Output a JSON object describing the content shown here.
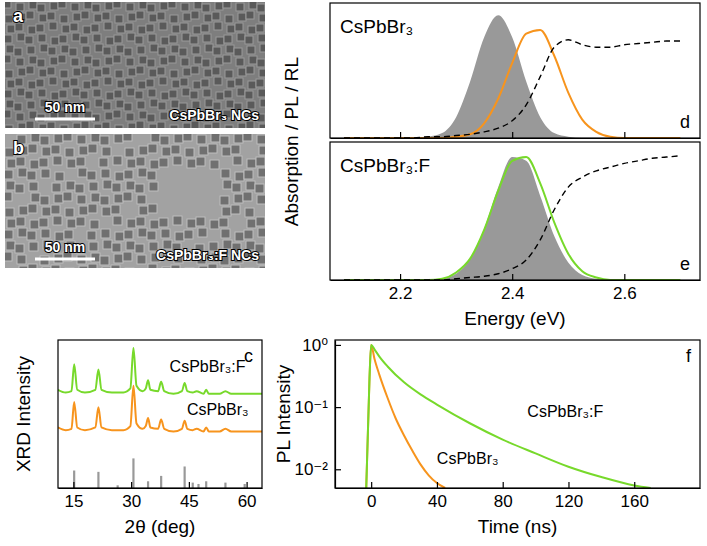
{
  "chart_data": [
    {
      "type": "image",
      "panel": "a",
      "title": "CsPbBr₃ NCs",
      "annotations": [
        "50 nm"
      ]
    },
    {
      "type": "image",
      "panel": "b",
      "title": "CsPbBr₃:F NCs",
      "annotations": [
        "50 nm"
      ]
    },
    {
      "type": "line",
      "panel": "c",
      "xlabel": "2θ (deg)",
      "ylabel": "XRD Intensity",
      "xlim": [
        11,
        64
      ],
      "ylim": [
        0,
        11
      ],
      "xticks": [
        15,
        30,
        45,
        60
      ],
      "tick_labels": "x",
      "x": [
        11,
        13,
        14.5,
        15.2,
        16,
        18,
        20.7,
        21.5,
        22.3,
        25,
        28,
        29.8,
        30.6,
        31.4,
        33,
        33.8,
        34.4,
        35,
        37,
        37.8,
        38.6,
        41,
        43.2,
        43.9,
        44.6,
        46,
        47,
        48.8,
        49.5,
        50.2,
        53,
        54.5,
        56,
        60,
        64
      ],
      "series": [
        {
          "name": "CsPbBr₃:F",
          "color": "#77d92b",
          "values": [
            7.3,
            7.1,
            7.2,
            9.2,
            7.3,
            7.1,
            7.3,
            8.8,
            7.3,
            7.1,
            7.1,
            7.4,
            10.4,
            7.6,
            7.2,
            7.4,
            8.0,
            7.3,
            7.2,
            7.9,
            7.2,
            7.0,
            7.2,
            7.8,
            7.2,
            7.1,
            7.2,
            7.0,
            7.3,
            7.0,
            7.0,
            7.2,
            7.0,
            7.0,
            7.0
          ]
        },
        {
          "name": "CsPbBr₃",
          "color": "#f7941d",
          "values": [
            4.5,
            4.3,
            4.4,
            6.4,
            4.5,
            4.3,
            4.5,
            6.0,
            4.5,
            4.3,
            4.3,
            4.6,
            7.6,
            4.8,
            4.4,
            4.6,
            5.2,
            4.5,
            4.4,
            5.1,
            4.4,
            4.2,
            4.4,
            5.0,
            4.4,
            4.3,
            4.4,
            4.2,
            4.5,
            4.2,
            4.2,
            4.4,
            4.2,
            4.2,
            4.2
          ]
        },
        {
          "type": "stem",
          "color": "#999999",
          "x": [
            15.2,
            21.5,
            26.5,
            30.6,
            34.4,
            37.8,
            43.9,
            46,
            47.5,
            49.5,
            54.5,
            59.5
          ],
          "values": [
            1.3,
            1.2,
            0.2,
            2.2,
            0.5,
            0.9,
            1.6,
            0.4,
            0.3,
            0.5,
            0.4,
            0.3
          ]
        }
      ]
    },
    {
      "type": "line",
      "panel": "d",
      "title": "CsPbBr₃",
      "ylabel": "Absorption / PL / RL",
      "xlim": [
        2.075,
        2.735
      ],
      "ylim": [
        0,
        1.1
      ],
      "xticks": [
        2.2,
        2.4,
        2.6
      ],
      "tick_labels": false,
      "x": [
        2.1,
        2.125,
        2.15,
        2.175,
        2.2,
        2.225,
        2.25,
        2.275,
        2.3,
        2.325,
        2.35,
        2.375,
        2.4,
        2.425,
        2.45,
        2.475,
        2.5,
        2.525,
        2.55,
        2.575,
        2.6,
        2.625,
        2.65,
        2.675,
        2.7
      ],
      "series": [
        {
          "type": "area",
          "color": "#999999",
          "values": [
            0,
            0,
            0,
            0,
            0,
            0,
            0.01,
            0.04,
            0.17,
            0.46,
            0.82,
            1.0,
            0.82,
            0.46,
            0.17,
            0.04,
            0.01,
            0,
            0,
            0,
            0,
            0,
            0,
            0,
            0
          ]
        },
        {
          "color": "#f7941d",
          "values": [
            0,
            0,
            0,
            0,
            0,
            0,
            0,
            0,
            0.01,
            0.03,
            0.12,
            0.32,
            0.61,
            0.85,
            0.88,
            0.67,
            0.37,
            0.15,
            0.05,
            0.01,
            0,
            0,
            0,
            0,
            0
          ]
        },
        {
          "color": "#000000",
          "line_style": "dashed",
          "values": [
            0,
            0,
            0,
            0,
            0,
            0,
            0.01,
            0.01,
            0.02,
            0.03,
            0.05,
            0.08,
            0.14,
            0.27,
            0.5,
            0.74,
            0.8,
            0.76,
            0.74,
            0.74,
            0.76,
            0.77,
            0.78,
            0.79,
            0.79
          ]
        }
      ]
    },
    {
      "type": "line",
      "panel": "e",
      "title": "CsPbBr₃:F",
      "xlabel": "Energy (eV)",
      "xlim": [
        2.075,
        2.735
      ],
      "ylim": [
        0,
        1.1
      ],
      "xticks": [
        2.2,
        2.4,
        2.6
      ],
      "tick_labels": "x",
      "x": [
        2.1,
        2.125,
        2.15,
        2.175,
        2.2,
        2.225,
        2.25,
        2.275,
        2.3,
        2.325,
        2.35,
        2.375,
        2.4,
        2.425,
        2.45,
        2.475,
        2.5,
        2.525,
        2.55,
        2.575,
        2.6,
        2.625,
        2.65,
        2.675,
        2.7
      ],
      "series": [
        {
          "type": "area",
          "color": "#999999",
          "values": [
            0,
            0,
            0,
            0,
            0,
            0,
            0,
            0.01,
            0.05,
            0.17,
            0.41,
            0.74,
            0.98,
            0.95,
            0.67,
            0.35,
            0.14,
            0.04,
            0.01,
            0,
            0,
            0,
            0,
            0,
            0
          ]
        },
        {
          "color": "#77d92b",
          "values": [
            0,
            0,
            0,
            0,
            0,
            0,
            0,
            0.01,
            0.06,
            0.17,
            0.4,
            0.71,
            0.95,
            0.98,
            0.77,
            0.46,
            0.21,
            0.07,
            0.02,
            0,
            0,
            0,
            0,
            0,
            0
          ]
        },
        {
          "color": "#000000",
          "line_style": "dashed",
          "values": [
            0,
            0,
            0,
            0,
            0,
            0,
            0,
            0,
            0.01,
            0.02,
            0.03,
            0.05,
            0.09,
            0.16,
            0.32,
            0.56,
            0.74,
            0.82,
            0.87,
            0.9,
            0.93,
            0.95,
            0.97,
            0.98,
            0.99
          ]
        }
      ]
    },
    {
      "type": "line",
      "panel": "f",
      "log": "y",
      "xlabel": "Time (ns)",
      "ylabel": "PL Intensity",
      "xlim": [
        -22,
        200
      ],
      "ylim": [
        0.005,
        1.2
      ],
      "xticks": [
        0,
        40,
        80,
        120,
        160
      ],
      "yticks": [
        {
          "value": 1,
          "label": "10⁰"
        },
        {
          "value": 0.1,
          "label": "10⁻¹"
        },
        {
          "value": 0.01,
          "label": "10⁻²"
        }
      ],
      "series": [
        {
          "name": "CsPbBr₃",
          "color": "#f7941d",
          "x": [
            -3,
            -1,
            0,
            2,
            5,
            10,
            15,
            20,
            25,
            30,
            35,
            40,
            45
          ],
          "values": [
            0.005,
            0.3,
            1,
            0.6,
            0.33,
            0.14,
            0.065,
            0.035,
            0.02,
            0.012,
            0.008,
            0.006,
            0.005
          ]
        },
        {
          "name": "CsPbBr₃:F",
          "color": "#77d92b",
          "x": [
            -3,
            -1,
            0,
            2,
            5,
            10,
            20,
            30,
            40,
            60,
            80,
            100,
            120,
            140,
            160,
            170
          ],
          "values": [
            0.005,
            0.3,
            1,
            0.85,
            0.65,
            0.45,
            0.25,
            0.16,
            0.11,
            0.055,
            0.03,
            0.018,
            0.011,
            0.0075,
            0.0055,
            0.005
          ]
        }
      ]
    }
  ]
}
